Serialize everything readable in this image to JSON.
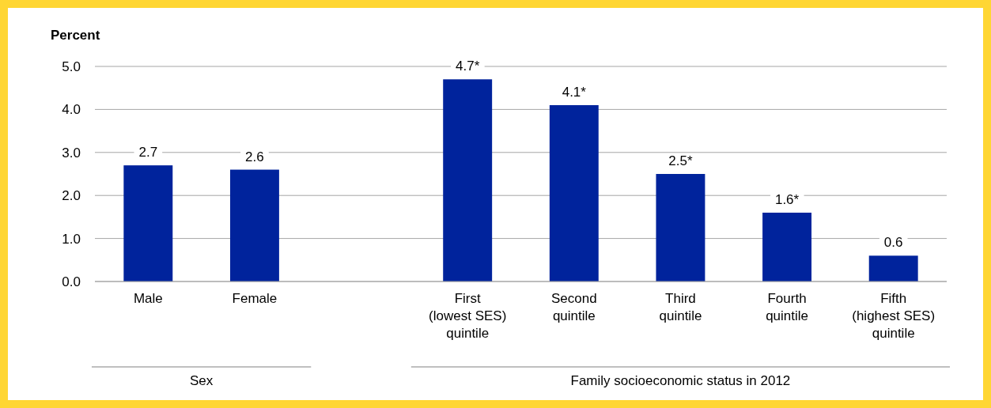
{
  "chart_data": {
    "type": "bar",
    "ylabel": "Percent",
    "categories": [
      "Male",
      "Female",
      null,
      "First\n(lowest SES)\nquintile",
      "Second\nquintile",
      "Third\nquintile",
      "Fourth\nquintile",
      "Fifth\n(highest SES)\nquintile"
    ],
    "values": [
      2.7,
      2.6,
      null,
      4.7,
      4.1,
      2.5,
      1.6,
      0.6
    ],
    "value_labels": [
      "2.7",
      "2.6",
      null,
      "4.7*",
      "4.1*",
      "2.5*",
      "1.6*",
      "0.6"
    ],
    "color": "#00239c",
    "ylim": [
      0,
      5
    ],
    "yticks": [
      {
        "value": 0,
        "label": "0.0"
      },
      {
        "value": 1,
        "label": "1.0"
      },
      {
        "value": 2,
        "label": "2.0"
      },
      {
        "value": 3,
        "label": "3.0"
      },
      {
        "value": 4,
        "label": "4.0"
      },
      {
        "value": 5,
        "label": "5.0"
      }
    ],
    "grid": "y",
    "annotations": [
      "Sex",
      "Family socioeconomic status in 2012"
    ]
  }
}
